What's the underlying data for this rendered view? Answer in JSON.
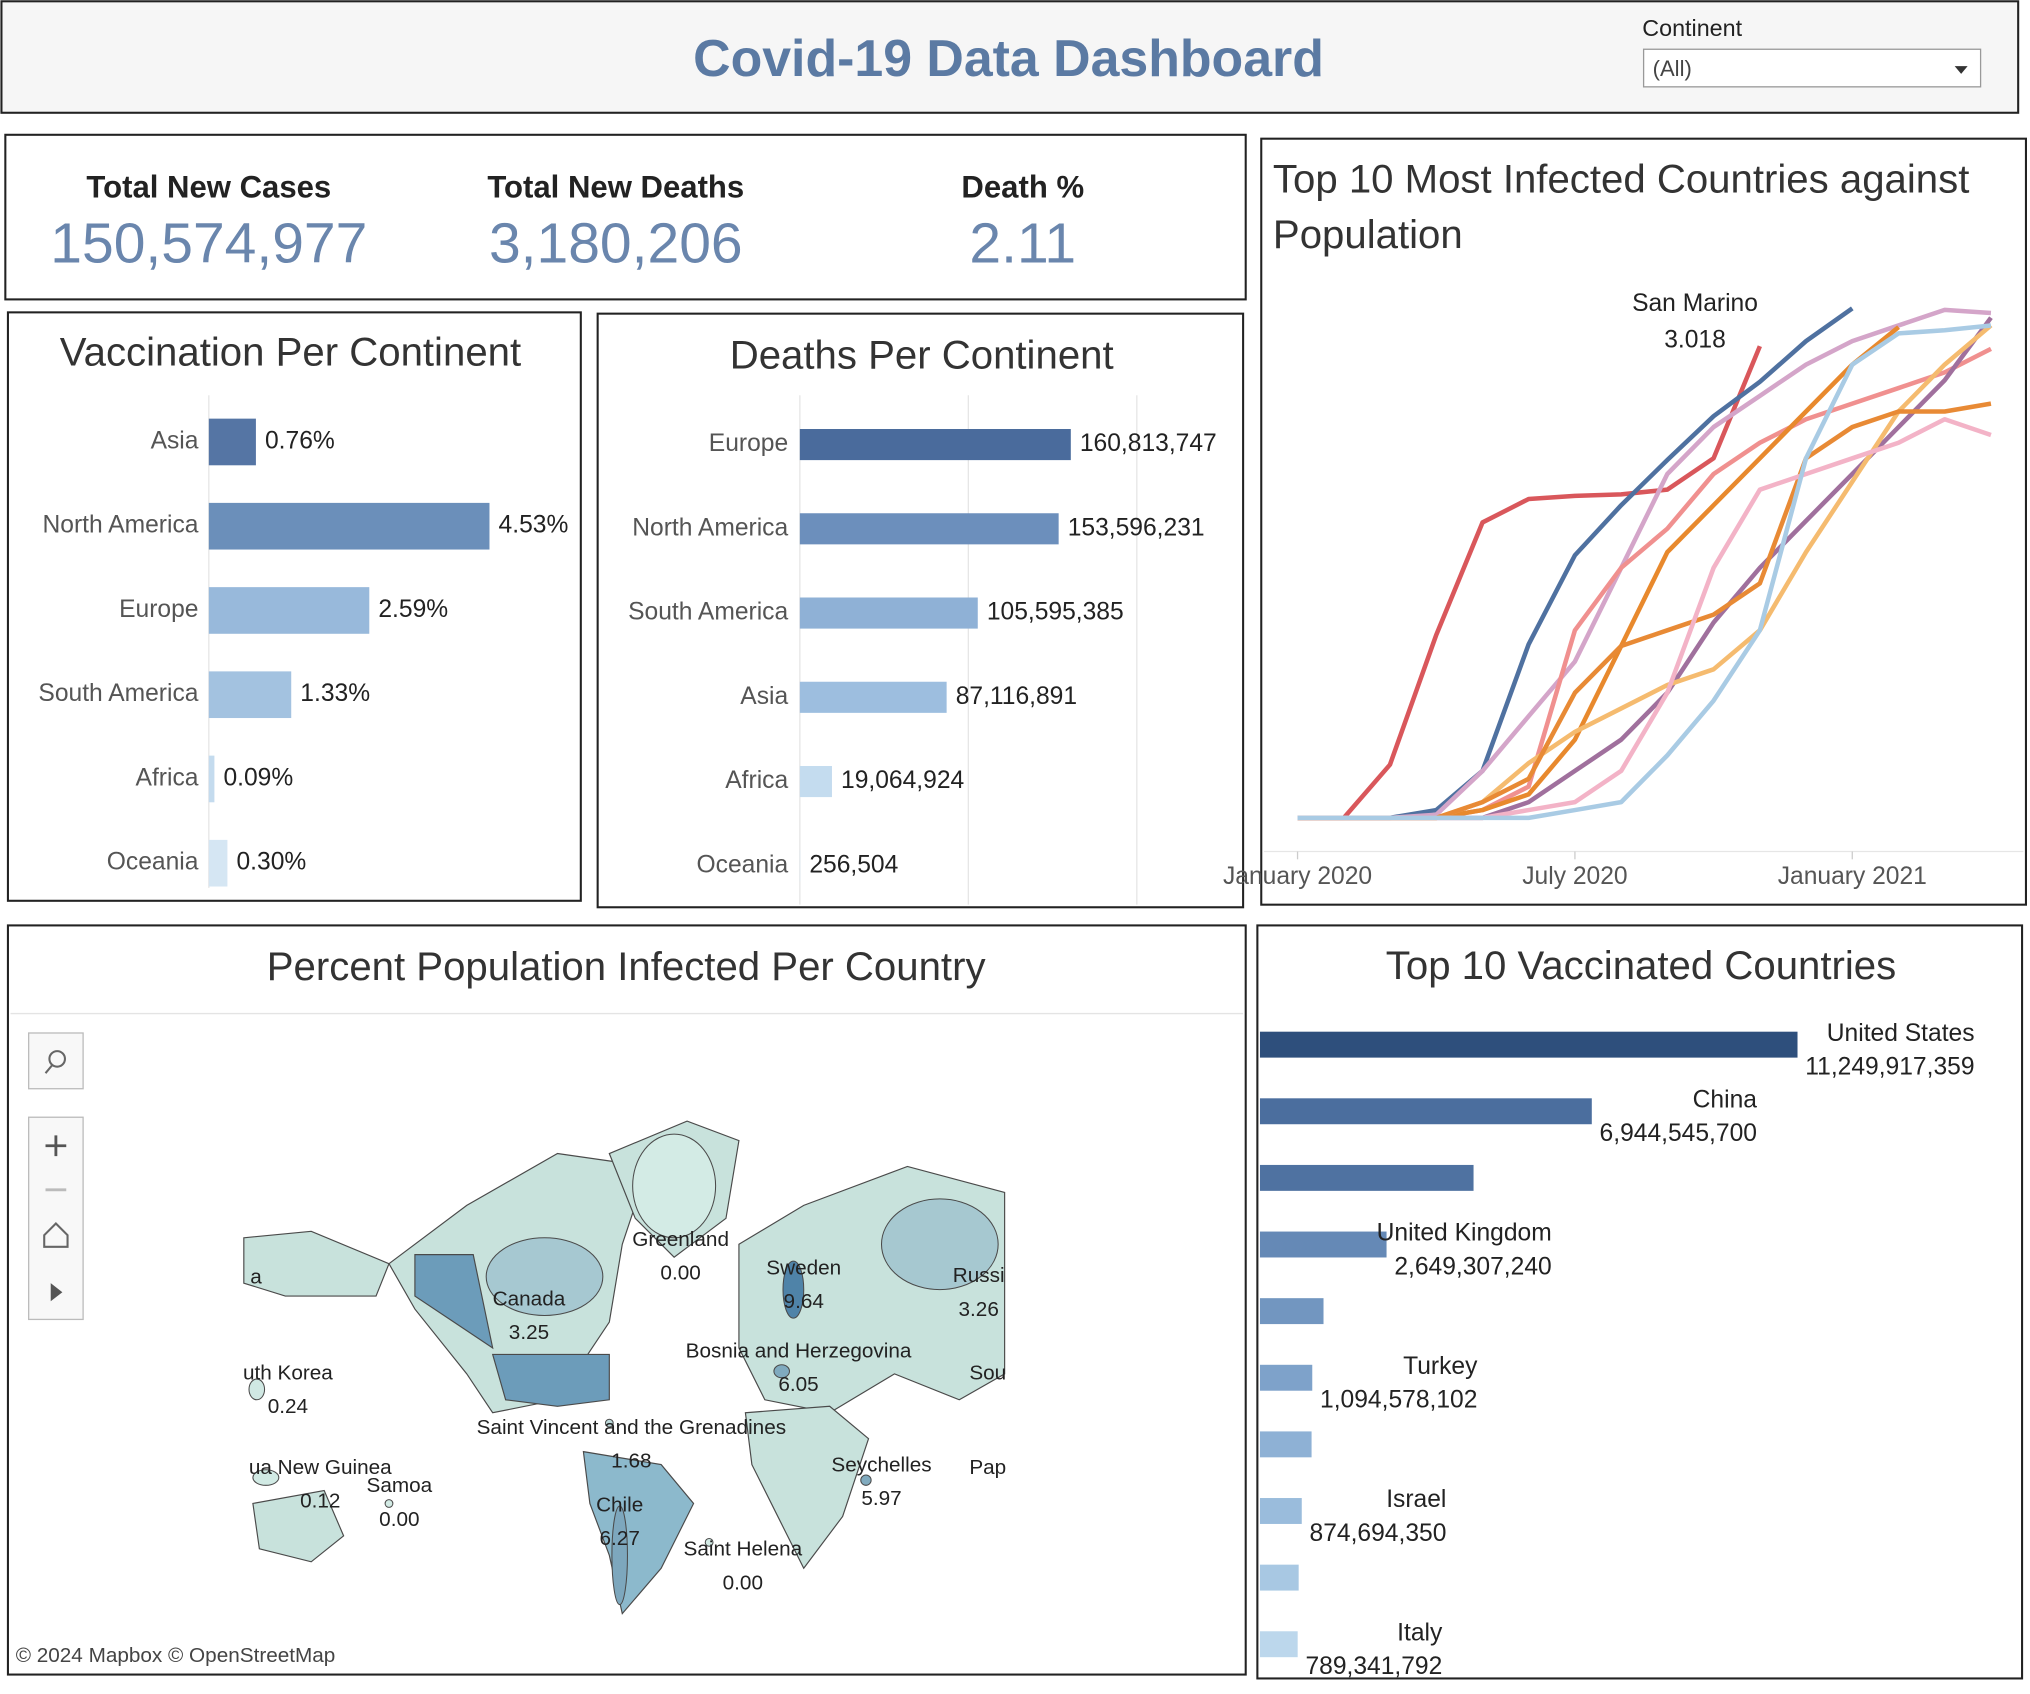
{
  "header": {
    "title": "Covid-19 Data Dashboard"
  },
  "filter": {
    "label": "Continent",
    "value": "(All)"
  },
  "kpis": [
    {
      "label": "Total New Cases",
      "value": "150,574,977"
    },
    {
      "label": "Total New Deaths",
      "value": "3,180,206"
    },
    {
      "label": "Death %",
      "value": "2.11"
    }
  ],
  "chart_data": [
    {
      "type": "hbar",
      "title": "Vaccination Per Continent",
      "categories": [
        "Asia",
        "North America",
        "Europe",
        "South America",
        "Africa",
        "Oceania"
      ],
      "values": [
        0.76,
        4.53,
        2.59,
        1.33,
        0.09,
        0.3
      ],
      "value_labels": [
        "0.76%",
        "4.53%",
        "2.59%",
        "1.33%",
        "0.09%",
        "0.30%"
      ],
      "colors": [
        "#5575a4",
        "#6b8fba",
        "#98b9db",
        "#a3c2e0",
        "#c4dbee",
        "#d5e6f3"
      ],
      "xlim": [
        0,
        5
      ]
    },
    {
      "type": "hbar",
      "title": "Deaths Per Continent",
      "categories": [
        "Europe",
        "North America",
        "South America",
        "Asia",
        "Africa",
        "Oceania"
      ],
      "values": [
        160813747,
        153596231,
        105595385,
        87116891,
        19064924,
        256504
      ],
      "value_labels": [
        "160,813,747",
        "153,596,231",
        "105,595,385",
        "87,116,891",
        "19,064,924",
        "256,504"
      ],
      "colors": [
        "#4a6b9c",
        "#6c8fbc",
        "#8fb1d6",
        "#9dbedf",
        "#c4dcef",
        "#d9e8f4"
      ],
      "xlim": [
        0,
        250000000
      ],
      "grid_lines": [
        0,
        100000000,
        200000000
      ]
    },
    {
      "type": "line",
      "title": "Top 10 Most Infected Countries against Population",
      "x": [
        "2020-01",
        "2020-02",
        "2020-03",
        "2020-04",
        "2020-05",
        "2020-06",
        "2020-07",
        "2020-08",
        "2020-09",
        "2020-10",
        "2020-11",
        "2020-12",
        "2021-01",
        "2021-02",
        "2021-03",
        "2021-04"
      ],
      "xlim": [
        "2020-01",
        "2021-04"
      ],
      "xticks": [
        {
          "value": "2020-01",
          "label": "January 2020"
        },
        {
          "value": "2020-07",
          "label": "July 2020"
        },
        {
          "value": "2021-01",
          "label": "January 2021"
        }
      ],
      "ylim": [
        0,
        3.4
      ],
      "annotation": "San Marino",
      "series": [
        {
          "color": "#d9575b",
          "values": [
            0,
            0,
            0.34,
            1.17,
            1.89,
            2.04,
            2.06,
            2.07,
            2.1,
            2.3,
            3.018,
            null,
            null,
            null,
            null,
            null
          ]
        },
        {
          "color": "#4f71a0",
          "values": [
            0,
            0,
            0,
            0.05,
            0.3,
            1.11,
            1.68,
            2.0,
            2.29,
            2.57,
            2.79,
            3.05,
            3.26,
            null,
            null,
            null
          ]
        },
        {
          "color": "#d4a5c9",
          "values": [
            0,
            0,
            0,
            0.02,
            0.3,
            0.65,
            1.0,
            1.6,
            2.2,
            2.5,
            2.7,
            2.9,
            3.05,
            3.15,
            3.25,
            3.23
          ]
        },
        {
          "color": "#f0908f",
          "values": [
            0,
            0,
            0,
            0,
            0.05,
            0.2,
            1.2,
            1.6,
            1.85,
            2.2,
            2.4,
            2.55,
            2.65,
            2.75,
            2.85,
            3.0
          ]
        },
        {
          "color": "#e8892d",
          "values": [
            0,
            0,
            0,
            0,
            0.05,
            0.15,
            0.5,
            1.1,
            1.7,
            2.0,
            2.3,
            2.6,
            2.9,
            3.14,
            null,
            null
          ]
        },
        {
          "color": "#a0709d",
          "values": [
            0,
            0,
            0,
            0,
            0,
            0.1,
            0.3,
            0.5,
            0.8,
            1.25,
            1.6,
            1.9,
            2.2,
            2.5,
            2.8,
            3.2
          ]
        },
        {
          "color": "#f5bb6f",
          "values": [
            0,
            0,
            0,
            0,
            0.1,
            0.35,
            0.55,
            0.7,
            0.85,
            0.95,
            1.2,
            1.7,
            2.15,
            2.6,
            2.9,
            3.15
          ]
        },
        {
          "color": "#e88a35",
          "values": [
            0,
            0,
            0,
            0,
            0.1,
            0.25,
            0.8,
            1.1,
            1.2,
            1.3,
            1.5,
            2.3,
            2.5,
            2.6,
            2.6,
            2.65
          ]
        },
        {
          "color": "#f3b3c7",
          "values": [
            0,
            0,
            0,
            0,
            0,
            0.05,
            0.1,
            0.3,
            0.8,
            1.6,
            2.1,
            2.2,
            2.3,
            2.4,
            2.55,
            2.45
          ]
        },
        {
          "color": "#a9cbe4",
          "values": [
            0,
            0,
            0,
            0,
            0,
            0,
            0.05,
            0.1,
            0.4,
            0.75,
            1.2,
            2.3,
            2.9,
            3.1,
            3.12,
            3.15
          ]
        }
      ]
    },
    {
      "type": "map",
      "title": "Percent Population Infected Per Country",
      "categories": [
        "a",
        "Greenland",
        "Canada",
        "Sweden",
        "Russi",
        "Bosnia and Herzegovina",
        "Sou",
        "uth Korea",
        "Saint Vincent and the Grenadines",
        "ua New Guinea",
        "Samoa",
        "Chile",
        "Seychelles",
        "Pap",
        "Saint Helena"
      ],
      "values": [
        null,
        0,
        3.25,
        9.64,
        3.26,
        6.05,
        null,
        0.24,
        1.68,
        0.12,
        0,
        6.27,
        5.97,
        null,
        0
      ],
      "value_labels": [
        null,
        "0.00",
        "3.25",
        "9.64",
        "3.26",
        "6.05",
        null,
        "0.24",
        "1.68",
        "0.12",
        "0.00",
        "6.27",
        "5.97",
        null,
        "0.00"
      ],
      "attribution": "© 2024 Mapbox © OpenStreetMap"
    },
    {
      "type": "hbar-labeled",
      "title": "Top 10 Vaccinated Countries",
      "categories": [
        "United States",
        "China",
        null,
        "United Kingdom",
        null,
        "Turkey",
        null,
        "Israel",
        null,
        "Italy"
      ],
      "values": [
        11249917359,
        6944545700,
        4470000000,
        2649307240,
        1330000000,
        1094578102,
        1080000000,
        874694350,
        810000000,
        789341792
      ],
      "value_labels": [
        "11,249,917,359",
        "6,944,545,700",
        null,
        "2,649,307,240",
        null,
        "1,094,578,102",
        null,
        "874,694,350",
        null,
        "789,341,792"
      ],
      "colors": [
        "#2e4f7c",
        "#4b6e9e",
        "#4f72a1",
        "#6589b6",
        "#7296c0",
        "#7ea2ca",
        "#8eb1d5",
        "#9abcdc",
        "#a8c8e3",
        "#bcd7ec"
      ],
      "xlim": [
        0,
        15000000000
      ]
    }
  ]
}
